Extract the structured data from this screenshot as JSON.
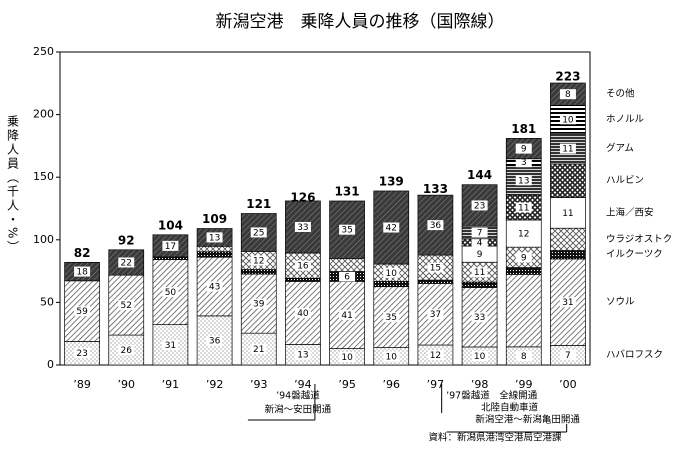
{
  "chart_data": {
    "type": "bar",
    "title": "新潟空港　乗降人員の推移（国際線）",
    "y_label": "乗降人員（千人・%）",
    "categories": [
      "’89",
      "’90",
      "’91",
      "’92",
      "’93",
      "’94",
      "’95",
      "’96",
      "’97",
      "’98",
      "’99",
      "’00"
    ],
    "totals": [
      82,
      92,
      104,
      109,
      121,
      126,
      131,
      139,
      133,
      144,
      181,
      223
    ],
    "series": [
      {
        "name": "ハバロフスク",
        "color": "#777777",
        "values": [
          23,
          26,
          31,
          36,
          21,
          13,
          10,
          10,
          12,
          10,
          8,
          7
        ],
        "value_labels": [
          "23",
          "26",
          "31",
          "36",
          "21",
          "13",
          "10",
          "10",
          "12",
          "10",
          "8",
          "7"
        ]
      },
      {
        "name": "ソウル",
        "color": "#444444",
        "values": [
          59,
          52,
          50,
          43,
          39,
          40,
          41,
          35,
          37,
          33,
          32,
          31
        ],
        "value_labels": [
          "59",
          "52",
          "50",
          "43",
          "39",
          "40",
          "41",
          "35",
          "37",
          "33",
          null,
          "31"
        ]
      },
      {
        "name": "イルクーツク",
        "color": "#111111",
        "values": [
          null,
          null,
          2,
          4,
          3,
          2,
          6,
          3,
          2,
          3,
          3,
          3
        ],
        "value_labels": [
          null,
          null,
          null,
          null,
          null,
          null,
          "6",
          null,
          null,
          null,
          null,
          null
        ]
      },
      {
        "name": "ウラジオストク",
        "color": "#555555",
        "values": [
          null,
          null,
          null,
          4,
          12,
          16,
          8,
          10,
          15,
          11,
          9,
          8
        ],
        "value_labels": [
          null,
          null,
          null,
          null,
          "12",
          "16",
          null,
          "10",
          "15",
          "11",
          "9",
          null
        ]
      },
      {
        "name": "上海／西安",
        "color": "#ffffff",
        "values": [
          null,
          null,
          null,
          null,
          null,
          null,
          null,
          null,
          null,
          9,
          12,
          11
        ],
        "value_labels": [
          null,
          null,
          null,
          null,
          null,
          null,
          null,
          null,
          null,
          "9",
          "12",
          "11"
        ]
      },
      {
        "name": "ハルビン",
        "color": "#222222",
        "values": [
          null,
          null,
          null,
          null,
          null,
          null,
          null,
          null,
          null,
          4,
          11,
          12
        ],
        "value_labels": [
          null,
          null,
          null,
          null,
          null,
          null,
          null,
          null,
          null,
          "4",
          "11",
          null
        ]
      },
      {
        "name": "グアム",
        "color": "#333333",
        "values": [
          null,
          null,
          null,
          null,
          null,
          null,
          null,
          null,
          null,
          7,
          13,
          11
        ],
        "value_labels": [
          null,
          null,
          null,
          null,
          null,
          null,
          null,
          null,
          null,
          "7",
          "13",
          "11"
        ]
      },
      {
        "name": "ホノルル",
        "color": "#000000",
        "values": [
          null,
          null,
          null,
          null,
          null,
          null,
          null,
          null,
          null,
          null,
          3,
          10
        ],
        "value_labels": [
          null,
          null,
          null,
          null,
          null,
          null,
          null,
          null,
          null,
          null,
          "3",
          "10"
        ]
      },
      {
        "name": "その他",
        "color": "#3a3a3a",
        "values": [
          18,
          22,
          17,
          13,
          25,
          33,
          35,
          42,
          36,
          23,
          9,
          8
        ],
        "value_labels": [
          "18",
          "22",
          "17",
          "13",
          "25",
          "33",
          "35",
          "42",
          "36",
          "23",
          "9",
          "8"
        ]
      }
    ],
    "ylim": [
      0,
      250
    ],
    "yticks": [
      0,
      50,
      100,
      150,
      200,
      250
    ],
    "annotations": [
      {
        "lines": [
          "’94磐越道",
          "新潟～安田開通"
        ]
      },
      {
        "lines": [
          "’97磐越道　全線開通",
          "北陸自動車道",
          "新潟空港～新潟亀田開通"
        ]
      }
    ],
    "source": "資料：新潟県港湾空港局空港課"
  }
}
